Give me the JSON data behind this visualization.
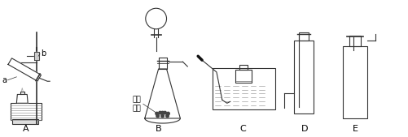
{
  "title": "",
  "labels_top": [
    "a",
    "b"
  ],
  "labels_bottom": [
    "A",
    "B",
    "C",
    "D",
    "E"
  ],
  "label_mno2": "二氧\n化锤",
  "bg_color": "#ffffff",
  "line_color": "#333333",
  "text_color": "#000000",
  "figsize": [
    5.02,
    1.69
  ],
  "dpi": 100
}
